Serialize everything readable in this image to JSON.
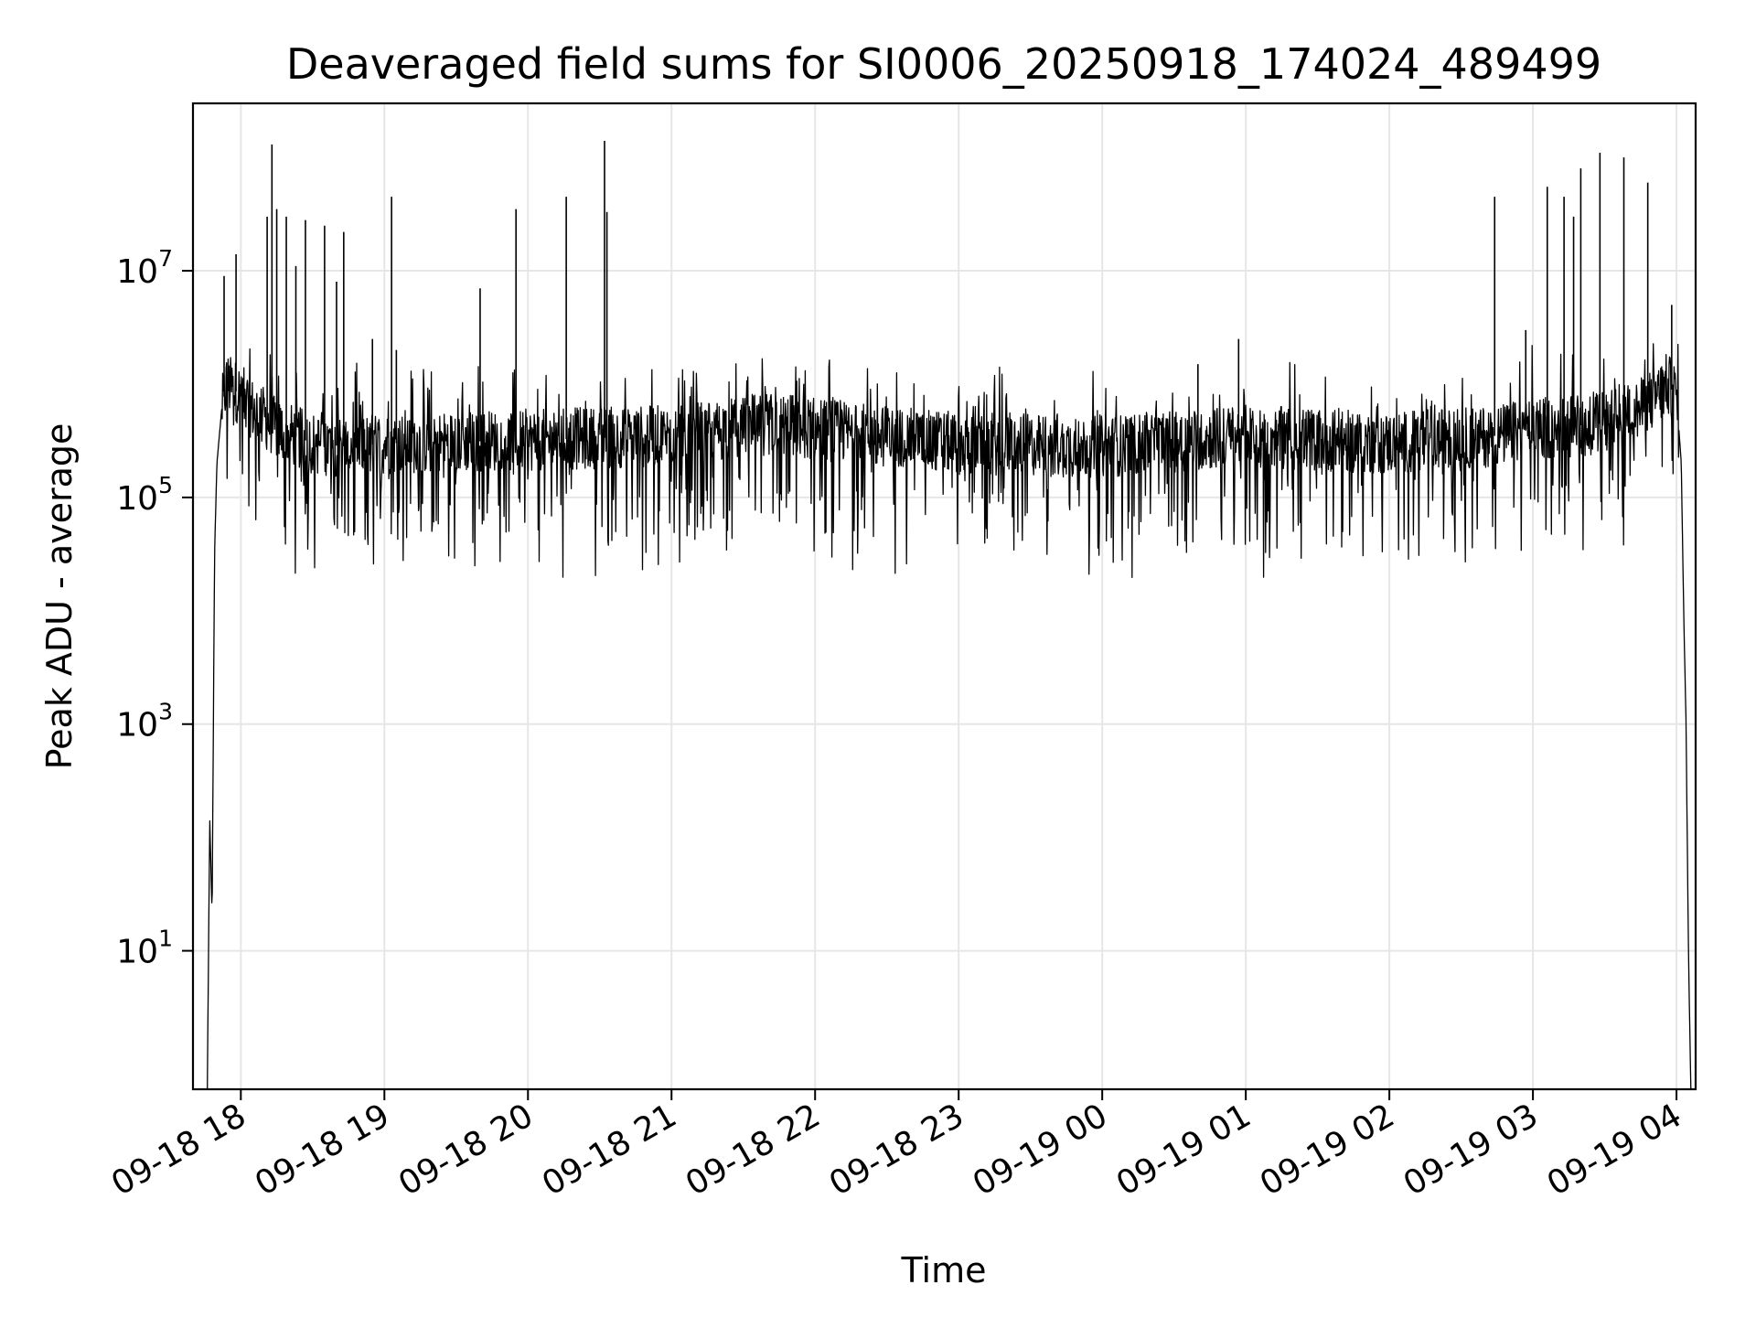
{
  "chart_data": {
    "type": "line",
    "title": "Deaveraged field sums for SI0006_20250918_174024_489499",
    "xlabel": "Time",
    "ylabel": "Peak ADU - average",
    "x_scale": "time",
    "y_scale": "log",
    "xlim": [
      "2025-09-18 17:40",
      "2025-09-19 04:08"
    ],
    "ylim": [
      0.6,
      300000000
    ],
    "grid": true,
    "legend": "none",
    "line_color": "#000000",
    "x_ticks": [
      {
        "value": "2025-09-18 18:00",
        "label": "09-18 18"
      },
      {
        "value": "2025-09-18 19:00",
        "label": "09-18 19"
      },
      {
        "value": "2025-09-18 20:00",
        "label": "09-18 20"
      },
      {
        "value": "2025-09-18 21:00",
        "label": "09-18 21"
      },
      {
        "value": "2025-09-18 22:00",
        "label": "09-18 22"
      },
      {
        "value": "2025-09-18 23:00",
        "label": "09-18 23"
      },
      {
        "value": "2025-09-19 00:00",
        "label": "09-19 00"
      },
      {
        "value": "2025-09-19 01:00",
        "label": "09-19 01"
      },
      {
        "value": "2025-09-19 02:00",
        "label": "09-19 02"
      },
      {
        "value": "2025-09-19 03:00",
        "label": "09-19 03"
      },
      {
        "value": "2025-09-19 04:00",
        "label": "09-19 04"
      }
    ],
    "y_ticks": [
      {
        "value": 10,
        "base": "10",
        "exp": "1"
      },
      {
        "value": 1000,
        "base": "10",
        "exp": "3"
      },
      {
        "value": 100000,
        "base": "10",
        "exp": "5"
      },
      {
        "value": 10000000,
        "base": "10",
        "exp": "7"
      }
    ],
    "series": [
      {
        "x": [
          "2025-09-18 17:46",
          "2025-09-18 17:47",
          "2025-09-18 17:48",
          "2025-09-18 17:49",
          "2025-09-18 17:50",
          "2025-09-18 17:52",
          "2025-09-18 17:54",
          "2025-09-18 17:57",
          "2025-09-18 18:00",
          "2025-09-18 18:05",
          "2025-09-18 18:10",
          "2025-09-18 18:15",
          "2025-09-18 18:30",
          "2025-09-18 18:45",
          "2025-09-18 19:00",
          "2025-09-18 20:00",
          "2025-09-18 21:00",
          "2025-09-18 21:45",
          "2025-09-18 22:00",
          "2025-09-18 23:00",
          "2025-09-19 00:00",
          "2025-09-19 01:00",
          "2025-09-19 02:00",
          "2025-09-19 02:45",
          "2025-09-19 03:00",
          "2025-09-19 03:30",
          "2025-09-19 03:45",
          "2025-09-19 03:52",
          "2025-09-19 03:56",
          "2025-09-19 04:00",
          "2025-09-19 04:02",
          "2025-09-19 04:03",
          "2025-09-19 04:04",
          "2025-09-19 04:05",
          "2025-09-19 04:06"
        ],
        "y": [
          0.6,
          150,
          20,
          30000,
          200000,
          600000,
          1000000,
          900000,
          800000,
          600000,
          500000,
          400000,
          300000,
          280000,
          300000,
          320000,
          350000,
          450000,
          400000,
          300000,
          280000,
          350000,
          300000,
          350000,
          400000,
          450000,
          600000,
          800000,
          1000000,
          800000,
          200000,
          10000,
          1000,
          10,
          0.6
        ]
      }
    ],
    "spikes": [
      {
        "x": "2025-09-18 17:53",
        "y": 9000000
      },
      {
        "x": "2025-09-18 17:58",
        "y": 14000000
      },
      {
        "x": "2025-09-18 18:11",
        "y": 30000000
      },
      {
        "x": "2025-09-18 18:13",
        "y": 130000000
      },
      {
        "x": "2025-09-18 18:15",
        "y": 35000000
      },
      {
        "x": "2025-09-18 18:19",
        "y": 30000000
      },
      {
        "x": "2025-09-18 18:23",
        "y": 11000000
      },
      {
        "x": "2025-09-18 18:27",
        "y": 28000000
      },
      {
        "x": "2025-09-18 18:35",
        "y": 25000000
      },
      {
        "x": "2025-09-18 18:40",
        "y": 8000000
      },
      {
        "x": "2025-09-18 18:43",
        "y": 22000000
      },
      {
        "x": "2025-09-18 18:55",
        "y": 2500000
      },
      {
        "x": "2025-09-18 19:03",
        "y": 45000000
      },
      {
        "x": "2025-09-18 19:05",
        "y": 2000000
      },
      {
        "x": "2025-09-18 19:40",
        "y": 7000000
      },
      {
        "x": "2025-09-18 19:55",
        "y": 35000000
      },
      {
        "x": "2025-09-18 20:16",
        "y": 45000000
      },
      {
        "x": "2025-09-18 20:32",
        "y": 140000000
      },
      {
        "x": "2025-09-18 20:33",
        "y": 33000000
      },
      {
        "x": "2025-09-19 00:40",
        "y": 1500000
      },
      {
        "x": "2025-09-19 00:57",
        "y": 2500000
      },
      {
        "x": "2025-09-19 02:44",
        "y": 45000000
      },
      {
        "x": "2025-09-19 02:57",
        "y": 3000000
      },
      {
        "x": "2025-09-19 03:06",
        "y": 55000000
      },
      {
        "x": "2025-09-19 03:13",
        "y": 45000000
      },
      {
        "x": "2025-09-19 03:17",
        "y": 30000000
      },
      {
        "x": "2025-09-19 03:20",
        "y": 80000000
      },
      {
        "x": "2025-09-19 03:28",
        "y": 110000000
      },
      {
        "x": "2025-09-19 03:38",
        "y": 100000000
      },
      {
        "x": "2025-09-19 03:48",
        "y": 60000000
      },
      {
        "x": "2025-09-19 03:58",
        "y": 5000000
      }
    ]
  }
}
